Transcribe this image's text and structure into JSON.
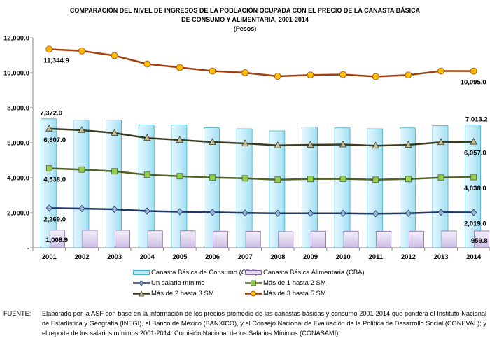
{
  "title": {
    "line1": "COMPARACIÓN DEL NIVEL DE INGRESOS DE LA POBLACIÓN OCUPADA CON EL PRECIO DE LA CANASTA BÁSICA",
    "line2": "DE CONSUMO Y ALIMENTARIA, 2001-2014",
    "line3": "(Pesos)"
  },
  "chart_data": {
    "type": "bar+line",
    "categories": [
      "2001",
      "2002",
      "2003",
      "2004",
      "2005",
      "2006",
      "2007",
      "2008",
      "2009",
      "2010",
      "2011",
      "2012",
      "2013",
      "2014"
    ],
    "ylim": [
      0,
      12000
    ],
    "yticks": [
      0,
      2000,
      4000,
      6000,
      8000,
      10000,
      12000
    ],
    "ytick_labels": [
      "-",
      "2,000.0",
      "4,000.0",
      "6,000.0",
      "8,000.0",
      "10,000.0",
      "12,000.0"
    ],
    "grid": false,
    "legend_position": "bottom",
    "bars": [
      {
        "name": "Canasta Básica de Consumo (CBC)",
        "color": "#bfe9f7",
        "border": "#4bacc6",
        "values": [
          7372.0,
          7300,
          7300,
          7020,
          7020,
          6860,
          6800,
          6680,
          6900,
          6850,
          6800,
          6850,
          6980,
          7013.2
        ],
        "labels": {
          "first": "7,372.0",
          "last": "7,013.2"
        }
      },
      {
        "name": "Canasta Básica Alimentaria (CBA)",
        "color": "#e4dbf0",
        "border": "#8064a2",
        "values": [
          1008.9,
          1000,
          1000,
          970,
          970,
          950,
          940,
          920,
          950,
          950,
          940,
          950,
          960,
          959.8
        ],
        "labels": {
          "first": "1,008.9",
          "last": "959.8"
        }
      }
    ],
    "series": [
      {
        "name": "Un salario mínimo",
        "marker": "diamond",
        "line_color": "#1f3864",
        "marker_color": "#95b3d7",
        "values": [
          2269.0,
          2240,
          2200,
          2100,
          2060,
          2030,
          1990,
          1970,
          1970,
          1970,
          1950,
          1970,
          2030,
          2019.0
        ],
        "labels": {
          "first": "2,269.0",
          "last": "2,019.0"
        }
      },
      {
        "name": "Más de 1 hasta 2 SM",
        "marker": "square",
        "line_color": "#4f6228",
        "marker_color": "#92d050",
        "values": [
          4538.0,
          4470,
          4370,
          4170,
          4090,
          4010,
          3970,
          3890,
          3930,
          3940,
          3890,
          3930,
          4010,
          4038.0
        ],
        "labels": {
          "first": "4,538.0",
          "last": "4,038.0"
        }
      },
      {
        "name": "Más de 2 hasta 3 SM",
        "marker": "triangle",
        "line_color": "#3b3b22",
        "marker_color": "#c4bd97",
        "values": [
          6807.0,
          6720,
          6560,
          6270,
          6160,
          6040,
          5960,
          5850,
          5880,
          5900,
          5830,
          5880,
          6030,
          6057.0
        ],
        "labels": {
          "first": "6,807.0",
          "last": "6,057.0"
        }
      },
      {
        "name": "Más de 3 hasta 5 SM",
        "marker": "circle",
        "line_color": "#a0410d",
        "marker_color": "#ffc000",
        "values": [
          11344.9,
          11250,
          10980,
          10500,
          10300,
          10100,
          10000,
          9800,
          9870,
          9900,
          9780,
          9870,
          10100,
          10095.0
        ],
        "labels": {
          "first": "11,344.9",
          "last": "10,095.0"
        }
      }
    ]
  },
  "footnote": {
    "label": "FUENTE:",
    "text": "Elaborado por la ASF con base en la información de los precios promedio de las canastas básicas y consumo 2001-2014 que pondera el Instituto Nacional de Estadística y Geografía (INEGI), el Banco de México (BANXICO), y el Consejo Nacional de Evaluación de la Política de Desarrollo Social (CONEVAL); y el reporte de los salarios mínimos 2001-2014. Comisión Nacional de los Salarios Mínimos (CONASAMI)."
  }
}
